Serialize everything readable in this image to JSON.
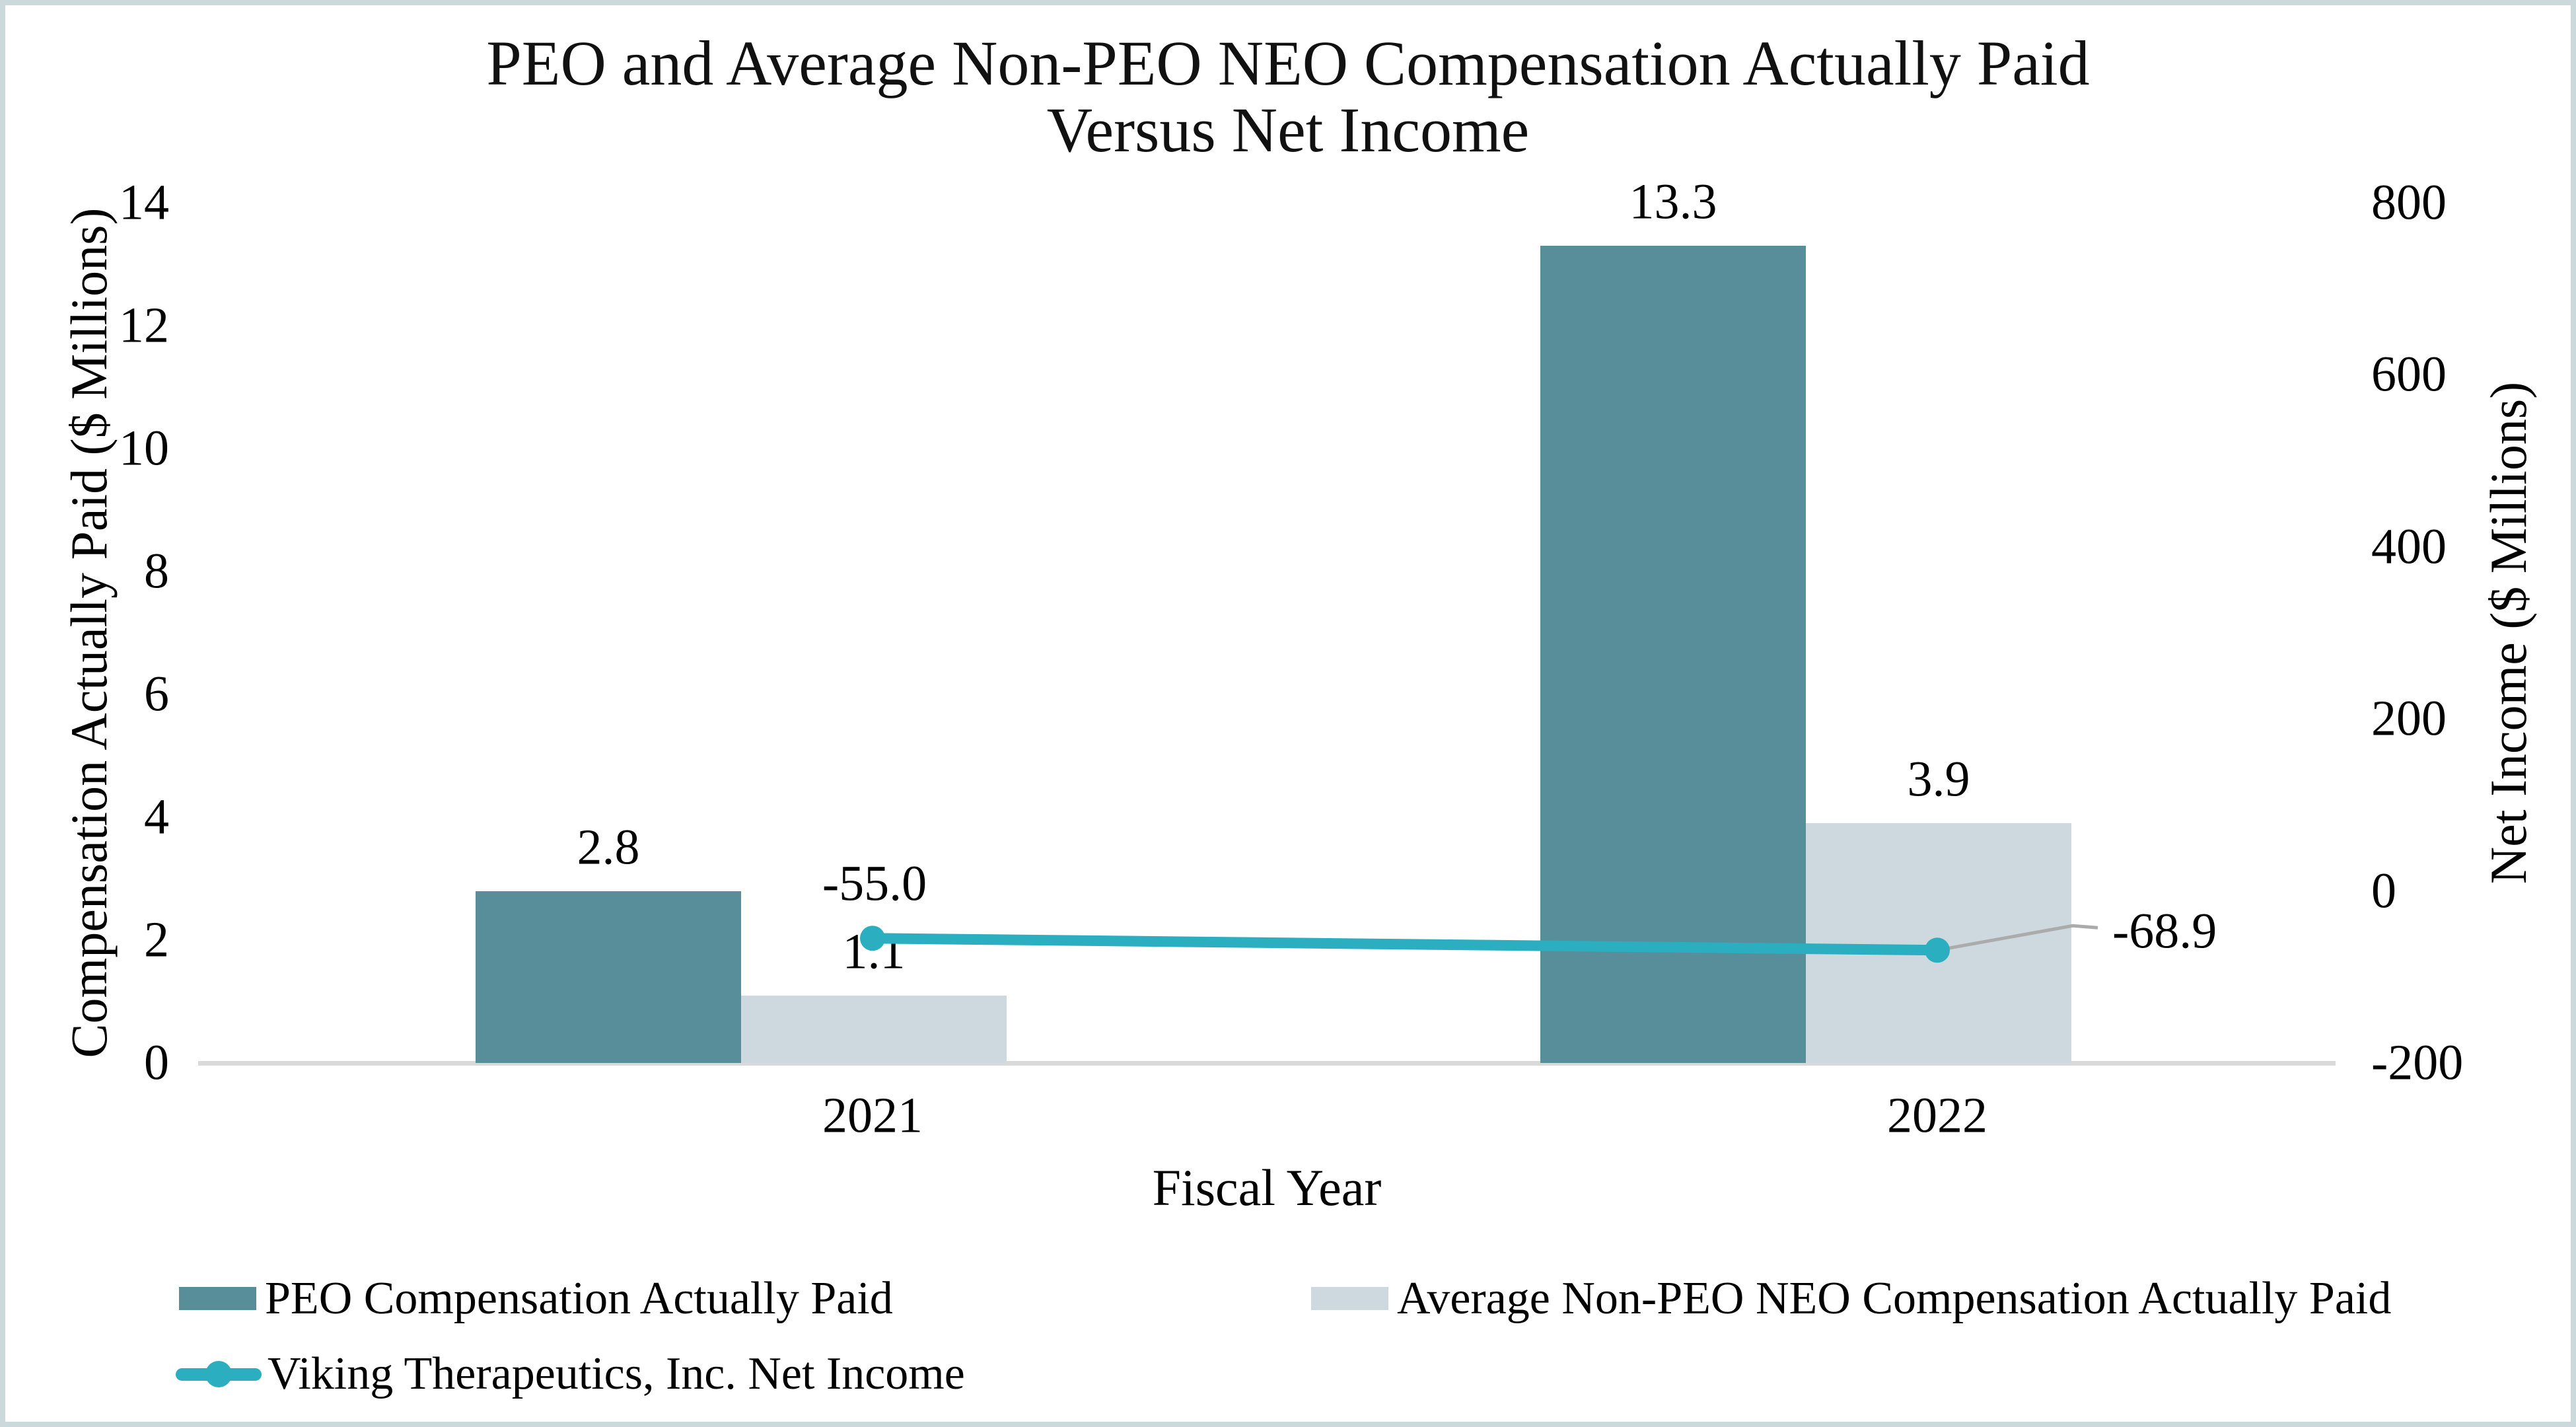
{
  "header": {
    "title_line1": "PEO and Average Non-PEO NEO Compensation Actually Paid",
    "title_line2": "Versus Net Income"
  },
  "colors": {
    "peo_bar": "#578E9A",
    "neo_bar": "#CDD9DE",
    "net_income_line": "#2AAEC0",
    "axis_line": "#D9D9D9",
    "leader_line": "#ABABAB",
    "frame_border": "#CBD8DC",
    "text": "#000000"
  },
  "chart_data": {
    "type": "combo",
    "categories": [
      "2021",
      "2022"
    ],
    "series": [
      {
        "name": "PEO Compensation Actually Paid",
        "type": "bar",
        "axis": "left",
        "values": [
          2.8,
          13.3
        ],
        "labels": [
          "2.8",
          "13.3"
        ],
        "color": "#578E9A"
      },
      {
        "name": "Average Non-PEO NEO Compensation Actually Paid",
        "type": "bar",
        "axis": "left",
        "values": [
          1.1,
          3.9
        ],
        "labels": [
          "1.1",
          "3.9"
        ],
        "color": "#CDD9DE"
      },
      {
        "name": "Viking Therapeutics, Inc. Net Income",
        "type": "line",
        "axis": "right",
        "values": [
          -55.0,
          -68.9
        ],
        "labels": [
          "-55.0",
          "-68.9"
        ],
        "color": "#2AAEC0"
      }
    ],
    "left_axis": {
      "title": "Compensation Actually Paid ($ Millions)",
      "ticks": [
        0,
        2,
        4,
        6,
        8,
        10,
        12,
        14
      ],
      "range": [
        0,
        14
      ]
    },
    "right_axis": {
      "title": "Net Income ($ Millions)",
      "ticks": [
        -200,
        0,
        200,
        400,
        600,
        800
      ],
      "range": [
        -200,
        800
      ]
    },
    "x_axis": {
      "title": "Fiscal Year"
    },
    "title": "PEO and Average Non-PEO NEO Compensation Actually Paid Versus Net Income",
    "grid": false,
    "legend_position": "bottom-left"
  }
}
